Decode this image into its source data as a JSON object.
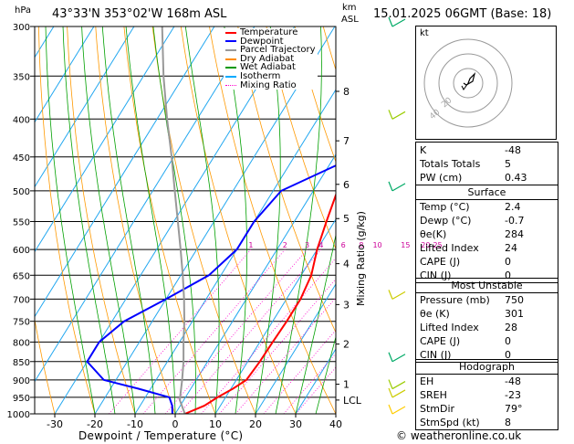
{
  "header": {
    "p_unit": "hPa",
    "location": "43°33'N 353°02'W 168m ASL",
    "km_unit": "km",
    "km_unit2": "ASL",
    "datetime": "15.01.2025 06GMT (Base: 18)"
  },
  "legend": {
    "items": [
      {
        "label": "Temperature",
        "color": "#ff0000",
        "style": "solid"
      },
      {
        "label": "Dewpoint",
        "color": "#0000ff",
        "style": "solid"
      },
      {
        "label": "Parcel Trajectory",
        "color": "#999999",
        "style": "solid"
      },
      {
        "label": "Dry Adiabat",
        "color": "#ff8c00",
        "style": "solid"
      },
      {
        "label": "Wet Adiabat",
        "color": "#009900",
        "style": "solid"
      },
      {
        "label": "Isotherm",
        "color": "#00aaff",
        "style": "solid"
      },
      {
        "label": "Mixing Ratio",
        "color": "#ff00cc",
        "style": "dotted"
      }
    ]
  },
  "chart_data": {
    "type": "line",
    "xlabel": "Dewpoint / Temperature (°C)",
    "ylabel": "hPa",
    "right_ylabel": "Mixing Ratio (g/kg)",
    "xlim": [
      -35,
      40
    ],
    "ylim": [
      1000,
      300
    ],
    "x_ticks": [
      -30,
      -20,
      -10,
      0,
      10,
      20,
      30,
      40
    ],
    "pressure_levels": [
      300,
      350,
      400,
      450,
      500,
      550,
      600,
      650,
      700,
      750,
      800,
      850,
      900,
      950,
      1000
    ],
    "km_labels": [
      {
        "p": 367,
        "label": "8"
      },
      {
        "p": 428,
        "label": "7"
      },
      {
        "p": 490,
        "label": "6"
      },
      {
        "p": 545,
        "label": "5"
      },
      {
        "p": 627,
        "label": "4"
      },
      {
        "p": 712,
        "label": "3"
      },
      {
        "p": 805,
        "label": "2"
      },
      {
        "p": 912,
        "label": "1"
      },
      {
        "p": 958,
        "label": "LCL"
      }
    ],
    "mixing_ratio_labels": [
      "1",
      "2",
      "3",
      "4",
      "6",
      "8",
      "10",
      "15",
      "20",
      "25"
    ],
    "mixing_ratio_positions": [
      -6.5,
      2,
      7.5,
      11,
      16.5,
      21,
      25,
      32,
      37,
      40
    ],
    "series": [
      {
        "name": "Temperature",
        "color": "#ff0000",
        "points": [
          {
            "p": 1000,
            "t": 2.4
          },
          {
            "p": 975,
            "t": 6
          },
          {
            "p": 950,
            "t": 8
          },
          {
            "p": 925,
            "t": 10.5
          },
          {
            "p": 900,
            "t": 12.5
          },
          {
            "p": 850,
            "t": 13
          },
          {
            "p": 800,
            "t": 13.2
          },
          {
            "p": 750,
            "t": 13.5
          },
          {
            "p": 700,
            "t": 13.5
          },
          {
            "p": 650,
            "t": 12.5
          },
          {
            "p": 600,
            "t": 10
          },
          {
            "p": 550,
            "t": 8
          },
          {
            "p": 500,
            "t": 6
          },
          {
            "p": 450,
            "t": 4.5
          },
          {
            "p": 400,
            "t": 3
          },
          {
            "p": 350,
            "t": 1
          },
          {
            "p": 300,
            "t": 0
          }
        ]
      },
      {
        "name": "Dewpoint",
        "color": "#0000ff",
        "points": [
          {
            "p": 1000,
            "t": -0.7
          },
          {
            "p": 975,
            "t": -2
          },
          {
            "p": 950,
            "t": -4
          },
          {
            "p": 925,
            "t": -13
          },
          {
            "p": 900,
            "t": -23
          },
          {
            "p": 850,
            "t": -30
          },
          {
            "p": 800,
            "t": -30
          },
          {
            "p": 750,
            "t": -27
          },
          {
            "p": 700,
            "t": -20
          },
          {
            "p": 650,
            "t": -13
          },
          {
            "p": 600,
            "t": -10
          },
          {
            "p": 550,
            "t": -10
          },
          {
            "p": 500,
            "t": -8
          },
          {
            "p": 450,
            "t": 5
          },
          {
            "p": 400,
            "t": 5
          },
          {
            "p": 350,
            "t": 5
          },
          {
            "p": 300,
            "t": 0
          }
        ]
      },
      {
        "name": "Parcel Trajectory",
        "color": "#999999",
        "points": [
          {
            "p": 1000,
            "t": 2.4
          },
          {
            "p": 958,
            "t": -1
          },
          {
            "p": 900,
            "t": -3.5
          },
          {
            "p": 850,
            "t": -6
          },
          {
            "p": 800,
            "t": -9
          },
          {
            "p": 750,
            "t": -12
          },
          {
            "p": 700,
            "t": -15.5
          },
          {
            "p": 650,
            "t": -19.5
          },
          {
            "p": 600,
            "t": -24
          },
          {
            "p": 550,
            "t": -29
          },
          {
            "p": 500,
            "t": -34.5
          },
          {
            "p": 450,
            "t": -40.5
          },
          {
            "p": 400,
            "t": -47.5
          },
          {
            "p": 350,
            "t": -55
          },
          {
            "p": 300,
            "t": -63
          }
        ]
      }
    ]
  },
  "hodograph": {
    "label": "kt",
    "ring_labels": [
      "20",
      "40"
    ]
  },
  "indices": {
    "k_label": "K",
    "k_value": "-48",
    "tt_label": "Totals Totals",
    "tt_value": "5",
    "pw_label": "PW (cm)",
    "pw_value": "0.43"
  },
  "surface": {
    "title": "Surface",
    "rows": [
      {
        "label": "Temp (°C)",
        "value": "2.4"
      },
      {
        "label": "Dewp (°C)",
        "value": "-0.7"
      },
      {
        "label": "θe(K)",
        "value": "284"
      },
      {
        "label": "Lifted Index",
        "value": "24"
      },
      {
        "label": "CAPE (J)",
        "value": "0"
      },
      {
        "label": "CIN (J)",
        "value": "0"
      }
    ]
  },
  "most_unstable": {
    "title": "Most Unstable",
    "rows": [
      {
        "label": "Pressure (mb)",
        "value": "750"
      },
      {
        "label": "θe (K)",
        "value": "301"
      },
      {
        "label": "Lifted Index",
        "value": "28"
      },
      {
        "label": "CAPE (J)",
        "value": "0"
      },
      {
        "label": "CIN (J)",
        "value": "0"
      }
    ]
  },
  "hodo_table": {
    "title": "Hodograph",
    "rows": [
      {
        "label": "EH",
        "value": "-48"
      },
      {
        "label": "SREH",
        "value": "-23"
      },
      {
        "label": "StmDir",
        "value": "79°"
      },
      {
        "label": "StmSpd (kt)",
        "value": "8"
      }
    ]
  },
  "footer": {
    "copyright": "© weatheronline.co.uk"
  }
}
